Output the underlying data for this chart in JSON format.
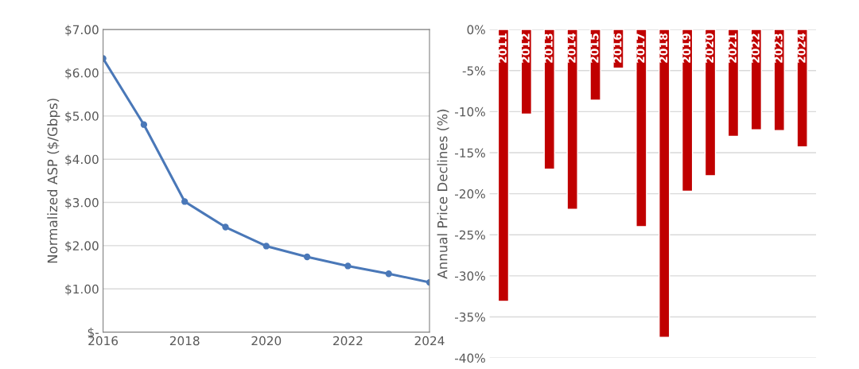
{
  "chart_data": [
    {
      "type": "line",
      "ylabel": "Normalized ASP ($/Gbps)",
      "x": [
        2016,
        2017,
        2018,
        2019,
        2020,
        2021,
        2022,
        2023,
        2024
      ],
      "series": [
        {
          "color": "#4a78b8",
          "values": [
            6.33,
            4.8,
            3.02,
            2.43,
            1.99,
            1.74,
            1.53,
            1.35,
            1.15
          ]
        }
      ],
      "marker": "circle",
      "xlim": [
        2016,
        2024
      ],
      "xticks": [
        2016,
        2018,
        2020,
        2022,
        2024
      ],
      "ylim": [
        0,
        7
      ],
      "yticks": [
        {
          "value": 0,
          "label": "$-"
        },
        {
          "value": 1,
          "label": "$1.00"
        },
        {
          "value": 2,
          "label": "$2.00"
        },
        {
          "value": 3,
          "label": "$3.00"
        },
        {
          "value": 4,
          "label": "$4.00"
        },
        {
          "value": 5,
          "label": "$5.00"
        },
        {
          "value": 6,
          "label": "$6.00"
        },
        {
          "value": 7,
          "label": "$7.00"
        }
      ],
      "grid": "y"
    },
    {
      "type": "bar",
      "ylabel": "Annual Price Declines (%)",
      "categories": [
        "2011",
        "2012",
        "2013",
        "2014",
        "2015",
        "2016",
        "2017",
        "2018",
        "2019",
        "2020",
        "2021",
        "2022",
        "2023",
        "2024"
      ],
      "series": [
        {
          "color": "#c00000",
          "values": [
            -33.1,
            -10.3,
            -17.0,
            -21.9,
            -8.6,
            -4.7,
            -24.0,
            -37.5,
            -19.7,
            -17.8,
            -13.0,
            -12.2,
            -12.3,
            -14.3
          ]
        }
      ],
      "ylim": [
        -40,
        0
      ],
      "yticks": [
        {
          "value": 0,
          "label": "0%"
        },
        {
          "value": -5,
          "label": "-5%"
        },
        {
          "value": -10,
          "label": "-10%"
        },
        {
          "value": -15,
          "label": "-15%"
        },
        {
          "value": -20,
          "label": "-20%"
        },
        {
          "value": -25,
          "label": "-25%"
        },
        {
          "value": -30,
          "label": "-30%"
        },
        {
          "value": -35,
          "label": "-35%"
        },
        {
          "value": -40,
          "label": "-40%"
        }
      ],
      "grid": "y"
    }
  ]
}
